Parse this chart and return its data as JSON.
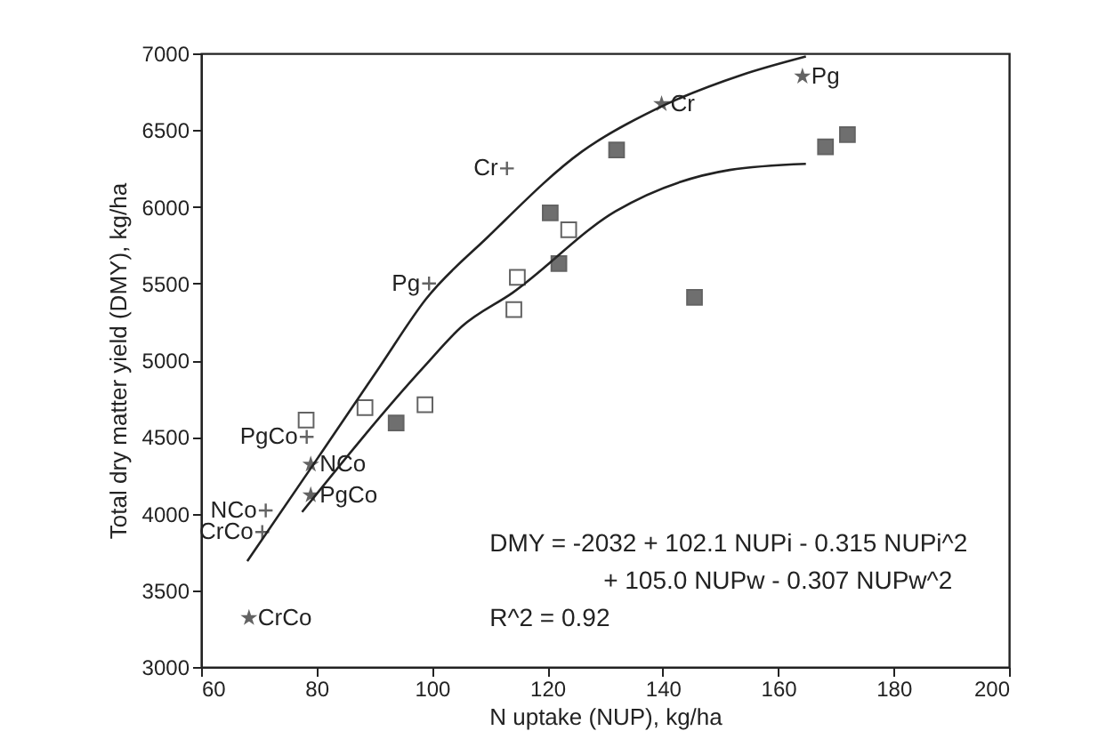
{
  "chart_data": {
    "type": "scatter",
    "xlabel": "N uptake (NUP), kg/ha",
    "ylabel": "Total dry matter yield (DMY), kg/ha",
    "xlim": [
      60,
      200
    ],
    "xticks": [
      60,
      80,
      100,
      120,
      140,
      160,
      180,
      200
    ],
    "ylim": [
      3000,
      7000
    ],
    "yticks": [
      3000,
      3500,
      4000,
      4500,
      5000,
      5500,
      6000,
      6500,
      7000
    ],
    "grid": false,
    "annotations": [
      "DMY = -2032 + 102.1 NUPi - 0.315 NUPi^2",
      "+ 105.0 NUPw - 0.307 NUPw^2",
      "R^2 = 0.92"
    ],
    "series": [
      {
        "type": "line",
        "color": "#222222",
        "marker": "none",
        "line_style": "solid",
        "x": [
          68,
          80,
          91,
          99,
          109.6,
          126,
          139,
          153.7,
          164.8
        ],
        "values": [
          3690,
          4350,
          4960,
          5400,
          5800,
          6360,
          6640,
          6860,
          6980
        ]
      },
      {
        "type": "line",
        "color": "#222222",
        "marker": "none",
        "line_style": "solid",
        "x": [
          77.5,
          98.7,
          105.2,
          114,
          131.8,
          151.6,
          164.8
        ],
        "values": [
          4010,
          4960,
          5220,
          5440,
          5970,
          6240,
          6280
        ]
      },
      {
        "color": "#333333",
        "marker": "square",
        "x": [
          132,
          120.5,
          122,
          145.5,
          168.2,
          172,
          93.8
        ],
        "values": [
          6370,
          5960,
          5630,
          5410,
          6390,
          6470,
          4590
        ]
      },
      {
        "color": "#ffffff",
        "marker": "square",
        "x": [
          114.8,
          114.2,
          123.7,
          78.2,
          88.4,
          98.8
        ],
        "values": [
          5540,
          5330,
          5850,
          4610,
          4690,
          4710
        ]
      },
      {
        "color": "#222222",
        "marker": "star",
        "x": [
          164.2,
          139.8,
          79,
          79,
          68.3
        ],
        "values": [
          6850,
          6670,
          4320,
          4120,
          3320
        ],
        "value_labels": [
          "Pg",
          "Cr",
          "NCo",
          "PgCo",
          "CrCo"
        ]
      },
      {
        "color": "#222222",
        "marker": "cross",
        "x": [
          113,
          99.5,
          78.3,
          71.2,
          70.6
        ],
        "values": [
          6250,
          5500,
          4500,
          4020,
          3880
        ],
        "value_labels": [
          "Cr",
          "Pg",
          "PgCo",
          "NCo",
          "CrCo"
        ]
      }
    ]
  }
}
